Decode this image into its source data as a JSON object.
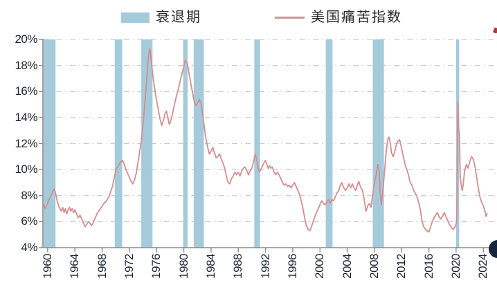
{
  "legend": {
    "recession_label": "衰退期",
    "series_label": "美国痛苦指数"
  },
  "colors": {
    "background": "#FFFFFF",
    "recession_band": "#A5CBDB",
    "series_line": "#D48E8E",
    "legend_line": "#CC9595",
    "grid_line": "#CCCCCC",
    "axis_line": "#8A8A8A",
    "tick_label": "#1B2430",
    "legend_text": "#2B2B2B",
    "corner_bullet": "#16243D",
    "corner_mark": "#B03A3A"
  },
  "chart_data": {
    "type": "line",
    "title": "",
    "xlabel": "",
    "ylabel": "",
    "x_domain": [
      1959.3,
      2025.6
    ],
    "y_domain": [
      4,
      20
    ],
    "grid": "dash-dot horizontal",
    "legend_position": "top-center",
    "x_ticks": [
      1960,
      1964,
      1968,
      1972,
      1976,
      1980,
      1984,
      1988,
      1992,
      1996,
      2000,
      2004,
      2008,
      2012,
      2016,
      2020,
      2024
    ],
    "x_tick_labels": [
      "1960",
      "1964",
      "1968",
      "1972",
      "1976",
      "1980",
      "1984",
      "1988",
      "1992",
      "1996",
      "2000",
      "2004",
      "2008",
      "2012",
      "2016",
      "2020",
      "2024"
    ],
    "y_ticks": [
      20,
      18,
      16,
      14,
      12,
      10,
      8,
      6,
      4
    ],
    "y_tick_labels": [
      "20%",
      "18%",
      "16%",
      "14%",
      "12%",
      "10%",
      "8%",
      "6%",
      "4%"
    ],
    "y_grid_values": [
      20,
      18,
      16,
      14,
      12,
      10,
      8,
      6
    ],
    "recession_bands": [
      [
        1959.4,
        1961.15
      ],
      [
        1969.85,
        1970.95
      ],
      [
        1973.75,
        1975.4
      ],
      [
        1979.9,
        1980.55
      ],
      [
        1981.45,
        1982.95
      ],
      [
        1990.35,
        1991.2
      ],
      [
        2000.85,
        2001.85
      ],
      [
        2007.75,
        2009.4
      ],
      [
        2020.0,
        2020.45
      ]
    ],
    "series": [
      {
        "name": "美国痛苦指数",
        "color": "#D48E8E",
        "points": [
          [
            1959.4,
            7.3
          ],
          [
            1959.6,
            7.0
          ],
          [
            1959.9,
            7.3
          ],
          [
            1960.2,
            7.7
          ],
          [
            1960.5,
            8.0
          ],
          [
            1960.75,
            8.3
          ],
          [
            1960.95,
            8.5
          ],
          [
            1961.15,
            8.2
          ],
          [
            1961.35,
            7.7
          ],
          [
            1961.6,
            7.2
          ],
          [
            1961.8,
            7.0
          ],
          [
            1962.0,
            6.8
          ],
          [
            1962.2,
            7.1
          ],
          [
            1962.4,
            6.7
          ],
          [
            1962.6,
            7.0
          ],
          [
            1962.8,
            6.6
          ],
          [
            1963.0,
            6.9
          ],
          [
            1963.2,
            7.1
          ],
          [
            1963.4,
            6.8
          ],
          [
            1963.6,
            7.0
          ],
          [
            1963.8,
            6.7
          ],
          [
            1964.0,
            6.9
          ],
          [
            1964.25,
            6.6
          ],
          [
            1964.5,
            6.3
          ],
          [
            1964.75,
            6.5
          ],
          [
            1965.0,
            6.2
          ],
          [
            1965.25,
            5.9
          ],
          [
            1965.5,
            5.6
          ],
          [
            1965.75,
            5.8
          ],
          [
            1966.0,
            6.0
          ],
          [
            1966.2,
            5.9
          ],
          [
            1966.4,
            5.7
          ],
          [
            1966.6,
            5.8
          ],
          [
            1966.8,
            6.1
          ],
          [
            1967.0,
            6.3
          ],
          [
            1967.25,
            6.6
          ],
          [
            1967.5,
            6.8
          ],
          [
            1967.75,
            7.0
          ],
          [
            1968.0,
            7.2
          ],
          [
            1968.25,
            7.4
          ],
          [
            1968.5,
            7.5
          ],
          [
            1968.75,
            7.7
          ],
          [
            1969.0,
            7.9
          ],
          [
            1969.25,
            8.3
          ],
          [
            1969.5,
            8.7
          ],
          [
            1969.75,
            9.3
          ],
          [
            1970.0,
            9.9
          ],
          [
            1970.25,
            10.2
          ],
          [
            1970.5,
            10.4
          ],
          [
            1970.75,
            10.6
          ],
          [
            1971.0,
            10.7
          ],
          [
            1971.25,
            10.4
          ],
          [
            1971.5,
            10.0
          ],
          [
            1971.75,
            9.7
          ],
          [
            1972.0,
            9.4
          ],
          [
            1972.25,
            9.1
          ],
          [
            1972.5,
            8.9
          ],
          [
            1972.75,
            9.2
          ],
          [
            1973.0,
            9.7
          ],
          [
            1973.25,
            10.5
          ],
          [
            1973.5,
            11.3
          ],
          [
            1973.75,
            12.2
          ],
          [
            1974.0,
            13.4
          ],
          [
            1974.25,
            14.9
          ],
          [
            1974.5,
            16.6
          ],
          [
            1974.75,
            18.3
          ],
          [
            1974.92,
            19.1
          ],
          [
            1975.0,
            19.3
          ],
          [
            1975.17,
            18.6
          ],
          [
            1975.33,
            17.8
          ],
          [
            1975.5,
            17.0
          ],
          [
            1975.75,
            16.1
          ],
          [
            1976.0,
            15.3
          ],
          [
            1976.25,
            14.6
          ],
          [
            1976.5,
            13.9
          ],
          [
            1976.75,
            13.4
          ],
          [
            1977.0,
            13.8
          ],
          [
            1977.25,
            14.3
          ],
          [
            1977.45,
            14.5
          ],
          [
            1977.65,
            14.0
          ],
          [
            1977.85,
            13.5
          ],
          [
            1978.0,
            13.6
          ],
          [
            1978.25,
            14.1
          ],
          [
            1978.5,
            14.7
          ],
          [
            1978.75,
            15.3
          ],
          [
            1979.0,
            15.8
          ],
          [
            1979.25,
            16.3
          ],
          [
            1979.5,
            16.9
          ],
          [
            1979.75,
            17.4
          ],
          [
            1980.0,
            17.9
          ],
          [
            1980.2,
            18.4
          ],
          [
            1980.4,
            18.3
          ],
          [
            1980.6,
            17.9
          ],
          [
            1980.8,
            17.3
          ],
          [
            1981.0,
            16.7
          ],
          [
            1981.25,
            16.0
          ],
          [
            1981.5,
            15.3
          ],
          [
            1981.75,
            14.9
          ],
          [
            1982.0,
            15.1
          ],
          [
            1982.25,
            15.4
          ],
          [
            1982.5,
            15.1
          ],
          [
            1982.75,
            14.3
          ],
          [
            1983.0,
            13.3
          ],
          [
            1983.25,
            12.4
          ],
          [
            1983.5,
            11.7
          ],
          [
            1983.75,
            11.2
          ],
          [
            1984.0,
            11.4
          ],
          [
            1984.25,
            11.7
          ],
          [
            1984.5,
            11.3
          ],
          [
            1984.75,
            10.9
          ],
          [
            1985.0,
            11.0
          ],
          [
            1985.25,
            11.2
          ],
          [
            1985.5,
            10.8
          ],
          [
            1985.75,
            10.5
          ],
          [
            1986.0,
            10.1
          ],
          [
            1986.25,
            9.5
          ],
          [
            1986.5,
            9.0
          ],
          [
            1986.75,
            8.9
          ],
          [
            1987.0,
            9.3
          ],
          [
            1987.25,
            9.5
          ],
          [
            1987.5,
            9.8
          ],
          [
            1987.75,
            9.6
          ],
          [
            1988.0,
            9.8
          ],
          [
            1988.25,
            9.5
          ],
          [
            1988.5,
            9.9
          ],
          [
            1988.75,
            10.1
          ],
          [
            1989.0,
            10.2
          ],
          [
            1989.25,
            9.9
          ],
          [
            1989.5,
            9.6
          ],
          [
            1989.75,
            9.9
          ],
          [
            1990.0,
            10.1
          ],
          [
            1990.25,
            10.6
          ],
          [
            1990.5,
            11.2
          ],
          [
            1990.7,
            10.8
          ],
          [
            1990.9,
            10.2
          ],
          [
            1991.1,
            9.8
          ],
          [
            1991.3,
            10.0
          ],
          [
            1991.5,
            10.2
          ],
          [
            1991.75,
            10.5
          ],
          [
            1992.0,
            10.7
          ],
          [
            1992.2,
            10.4
          ],
          [
            1992.4,
            10.1
          ],
          [
            1992.6,
            10.3
          ],
          [
            1992.8,
            10.1
          ],
          [
            1993.0,
            10.2
          ],
          [
            1993.25,
            9.8
          ],
          [
            1993.5,
            9.6
          ],
          [
            1993.75,
            9.8
          ],
          [
            1994.0,
            9.6
          ],
          [
            1994.25,
            9.3
          ],
          [
            1994.5,
            9.0
          ],
          [
            1994.75,
            8.8
          ],
          [
            1995.0,
            8.9
          ],
          [
            1995.25,
            8.7
          ],
          [
            1995.5,
            8.8
          ],
          [
            1995.75,
            8.6
          ],
          [
            1996.0,
            8.8
          ],
          [
            1996.25,
            9.0
          ],
          [
            1996.5,
            8.7
          ],
          [
            1996.75,
            8.4
          ],
          [
            1997.0,
            8.1
          ],
          [
            1997.25,
            7.6
          ],
          [
            1997.5,
            7.0
          ],
          [
            1997.75,
            6.3
          ],
          [
            1998.0,
            5.7
          ],
          [
            1998.25,
            5.4
          ],
          [
            1998.5,
            5.3
          ],
          [
            1998.75,
            5.6
          ],
          [
            1999.0,
            6.0
          ],
          [
            1999.25,
            6.4
          ],
          [
            1999.5,
            6.7
          ],
          [
            1999.75,
            7.0
          ],
          [
            2000.0,
            7.3
          ],
          [
            2000.25,
            7.6
          ],
          [
            2000.5,
            7.4
          ],
          [
            2000.75,
            7.3
          ],
          [
            2001.0,
            7.5
          ],
          [
            2001.25,
            7.7
          ],
          [
            2001.5,
            7.4
          ],
          [
            2001.75,
            7.7
          ],
          [
            2002.0,
            7.6
          ],
          [
            2002.25,
            7.9
          ],
          [
            2002.5,
            8.2
          ],
          [
            2002.75,
            8.4
          ],
          [
            2003.0,
            8.8
          ],
          [
            2003.2,
            9.0
          ],
          [
            2003.5,
            8.6
          ],
          [
            2003.75,
            8.4
          ],
          [
            2004.0,
            8.6
          ],
          [
            2004.25,
            8.9
          ],
          [
            2004.5,
            8.6
          ],
          [
            2004.75,
            8.9
          ],
          [
            2005.0,
            8.6
          ],
          [
            2005.25,
            8.4
          ],
          [
            2005.5,
            8.8
          ],
          [
            2005.7,
            9.1
          ],
          [
            2006.0,
            8.6
          ],
          [
            2006.25,
            8.4
          ],
          [
            2006.5,
            7.7
          ],
          [
            2006.75,
            6.8
          ],
          [
            2007.0,
            7.2
          ],
          [
            2007.25,
            7.4
          ],
          [
            2007.5,
            7.1
          ],
          [
            2007.75,
            8.1
          ],
          [
            2008.0,
            9.0
          ],
          [
            2008.25,
            9.6
          ],
          [
            2008.5,
            10.4
          ],
          [
            2008.7,
            9.9
          ],
          [
            2008.85,
            8.2
          ],
          [
            2009.0,
            7.3
          ],
          [
            2009.25,
            8.4
          ],
          [
            2009.5,
            10.0
          ],
          [
            2009.75,
            11.5
          ],
          [
            2010.0,
            12.4
          ],
          [
            2010.15,
            12.5
          ],
          [
            2010.35,
            12.0
          ],
          [
            2010.5,
            11.3
          ],
          [
            2010.75,
            11.0
          ],
          [
            2011.0,
            11.4
          ],
          [
            2011.25,
            12.0
          ],
          [
            2011.5,
            12.2
          ],
          [
            2011.7,
            12.3
          ],
          [
            2012.0,
            11.6
          ],
          [
            2012.25,
            11.0
          ],
          [
            2012.5,
            10.4
          ],
          [
            2012.75,
            10.0
          ],
          [
            2013.0,
            9.6
          ],
          [
            2013.25,
            9.0
          ],
          [
            2013.5,
            8.8
          ],
          [
            2013.75,
            8.4
          ],
          [
            2014.0,
            8.2
          ],
          [
            2014.25,
            7.9
          ],
          [
            2014.5,
            7.5
          ],
          [
            2014.75,
            6.9
          ],
          [
            2015.0,
            6.0
          ],
          [
            2015.25,
            5.6
          ],
          [
            2015.5,
            5.4
          ],
          [
            2015.75,
            5.3
          ],
          [
            2016.0,
            5.2
          ],
          [
            2016.25,
            5.6
          ],
          [
            2016.5,
            6.0
          ],
          [
            2016.75,
            6.3
          ],
          [
            2017.0,
            6.5
          ],
          [
            2017.25,
            6.7
          ],
          [
            2017.5,
            6.4
          ],
          [
            2017.75,
            6.2
          ],
          [
            2018.0,
            6.4
          ],
          [
            2018.25,
            6.7
          ],
          [
            2018.5,
            6.4
          ],
          [
            2018.75,
            6.1
          ],
          [
            2019.0,
            5.8
          ],
          [
            2019.25,
            5.6
          ],
          [
            2019.5,
            5.4
          ],
          [
            2019.75,
            5.5
          ],
          [
            2020.0,
            5.8
          ],
          [
            2020.1,
            6.3
          ],
          [
            2020.25,
            15.2
          ],
          [
            2020.4,
            13.0
          ],
          [
            2020.5,
            12.7
          ],
          [
            2020.6,
            9.6
          ],
          [
            2020.75,
            8.8
          ],
          [
            2020.9,
            8.4
          ],
          [
            2021.0,
            8.7
          ],
          [
            2021.25,
            9.9
          ],
          [
            2021.5,
            10.4
          ],
          [
            2021.75,
            10.1
          ],
          [
            2022.0,
            10.6
          ],
          [
            2022.25,
            11.0
          ],
          [
            2022.5,
            10.8
          ],
          [
            2022.75,
            10.3
          ],
          [
            2023.0,
            9.5
          ],
          [
            2023.25,
            8.6
          ],
          [
            2023.5,
            7.9
          ],
          [
            2023.75,
            7.5
          ],
          [
            2024.0,
            7.2
          ],
          [
            2024.25,
            6.8
          ],
          [
            2024.4,
            6.4
          ],
          [
            2024.55,
            6.6
          ]
        ]
      }
    ]
  }
}
